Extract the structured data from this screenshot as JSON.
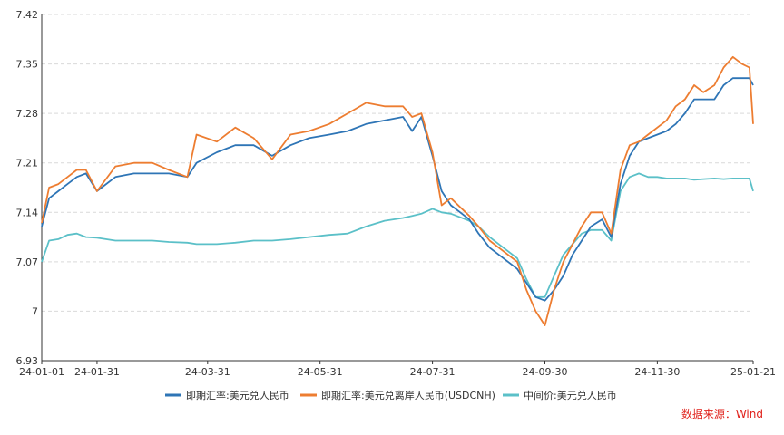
{
  "chart_data": {
    "type": "line",
    "x_ticks": [
      "24-01-01",
      "24-01-31",
      "24-03-31",
      "24-05-31",
      "24-07-31",
      "24-09-30",
      "24-11-30",
      "25-01-21"
    ],
    "y_ticks": [
      "7.42",
      "7.35",
      "7.28",
      "7.21",
      "7.14",
      "7.07",
      "7",
      "6.93"
    ],
    "ylim": [
      6.93,
      7.42
    ],
    "grid": "horizontal dashed",
    "legend_position": "bottom",
    "series": [
      {
        "name": "即期汇率:美元兑人民币",
        "color": "#2e75b6",
        "points": [
          [
            "2024-01-01",
            7.12
          ],
          [
            "2024-01-05",
            7.16
          ],
          [
            "2024-01-10",
            7.17
          ],
          [
            "2024-01-15",
            7.18
          ],
          [
            "2024-01-20",
            7.19
          ],
          [
            "2024-01-25",
            7.195
          ],
          [
            "2024-01-31",
            7.17
          ],
          [
            "2024-02-10",
            7.19
          ],
          [
            "2024-02-20",
            7.195
          ],
          [
            "2024-03-01",
            7.195
          ],
          [
            "2024-03-10",
            7.195
          ],
          [
            "2024-03-20",
            7.19
          ],
          [
            "2024-03-25",
            7.21
          ],
          [
            "2024-04-05",
            7.225
          ],
          [
            "2024-04-15",
            7.235
          ],
          [
            "2024-04-25",
            7.235
          ],
          [
            "2024-05-05",
            7.22
          ],
          [
            "2024-05-15",
            7.235
          ],
          [
            "2024-05-25",
            7.245
          ],
          [
            "2024-06-05",
            7.25
          ],
          [
            "2024-06-15",
            7.255
          ],
          [
            "2024-06-25",
            7.265
          ],
          [
            "2024-07-05",
            7.27
          ],
          [
            "2024-07-15",
            7.275
          ],
          [
            "2024-07-20",
            7.255
          ],
          [
            "2024-07-25",
            7.275
          ],
          [
            "2024-07-31",
            7.22
          ],
          [
            "2024-08-05",
            7.17
          ],
          [
            "2024-08-10",
            7.15
          ],
          [
            "2024-08-20",
            7.13
          ],
          [
            "2024-08-25",
            7.11
          ],
          [
            "2024-08-31",
            7.09
          ],
          [
            "2024-09-05",
            7.08
          ],
          [
            "2024-09-15",
            7.06
          ],
          [
            "2024-09-20",
            7.04
          ],
          [
            "2024-09-25",
            7.02
          ],
          [
            "2024-09-30",
            7.015
          ],
          [
            "2024-10-05",
            7.03
          ],
          [
            "2024-10-10",
            7.05
          ],
          [
            "2024-10-15",
            7.08
          ],
          [
            "2024-10-20",
            7.1
          ],
          [
            "2024-10-25",
            7.12
          ],
          [
            "2024-10-31",
            7.13
          ],
          [
            "2024-11-05",
            7.105
          ],
          [
            "2024-11-10",
            7.18
          ],
          [
            "2024-11-15",
            7.22
          ],
          [
            "2024-11-20",
            7.24
          ],
          [
            "2024-11-25",
            7.245
          ],
          [
            "2024-11-30",
            7.25
          ],
          [
            "2024-12-05",
            7.255
          ],
          [
            "2024-12-10",
            7.265
          ],
          [
            "2024-12-15",
            7.28
          ],
          [
            "2024-12-20",
            7.3
          ],
          [
            "2024-12-25",
            7.3
          ],
          [
            "2024-12-31",
            7.3
          ],
          [
            "2025-01-05",
            7.32
          ],
          [
            "2025-01-10",
            7.33
          ],
          [
            "2025-01-15",
            7.33
          ],
          [
            "2025-01-19",
            7.33
          ],
          [
            "2025-01-21",
            7.32
          ]
        ]
      },
      {
        "name": "即期汇率:美元兑离岸人民币(USDCNH)",
        "color": "#ed7d31",
        "points": [
          [
            "2024-01-01",
            7.125
          ],
          [
            "2024-01-05",
            7.175
          ],
          [
            "2024-01-10",
            7.18
          ],
          [
            "2024-01-15",
            7.19
          ],
          [
            "2024-01-20",
            7.2
          ],
          [
            "2024-01-25",
            7.2
          ],
          [
            "2024-01-31",
            7.17
          ],
          [
            "2024-02-10",
            7.205
          ],
          [
            "2024-02-20",
            7.21
          ],
          [
            "2024-03-01",
            7.21
          ],
          [
            "2024-03-10",
            7.2
          ],
          [
            "2024-03-20",
            7.19
          ],
          [
            "2024-03-25",
            7.25
          ],
          [
            "2024-04-05",
            7.24
          ],
          [
            "2024-04-15",
            7.26
          ],
          [
            "2024-04-25",
            7.245
          ],
          [
            "2024-05-05",
            7.215
          ],
          [
            "2024-05-15",
            7.25
          ],
          [
            "2024-05-25",
            7.255
          ],
          [
            "2024-06-05",
            7.265
          ],
          [
            "2024-06-15",
            7.28
          ],
          [
            "2024-06-25",
            7.295
          ],
          [
            "2024-07-05",
            7.29
          ],
          [
            "2024-07-15",
            7.29
          ],
          [
            "2024-07-20",
            7.275
          ],
          [
            "2024-07-25",
            7.28
          ],
          [
            "2024-07-31",
            7.225
          ],
          [
            "2024-08-05",
            7.15
          ],
          [
            "2024-08-10",
            7.16
          ],
          [
            "2024-08-20",
            7.135
          ],
          [
            "2024-08-25",
            7.12
          ],
          [
            "2024-08-31",
            7.1
          ],
          [
            "2024-09-05",
            7.09
          ],
          [
            "2024-09-15",
            7.07
          ],
          [
            "2024-09-20",
            7.03
          ],
          [
            "2024-09-25",
            7.0
          ],
          [
            "2024-09-30",
            6.98
          ],
          [
            "2024-10-05",
            7.03
          ],
          [
            "2024-10-10",
            7.07
          ],
          [
            "2024-10-15",
            7.095
          ],
          [
            "2024-10-20",
            7.12
          ],
          [
            "2024-10-25",
            7.14
          ],
          [
            "2024-10-31",
            7.14
          ],
          [
            "2024-11-05",
            7.11
          ],
          [
            "2024-11-10",
            7.2
          ],
          [
            "2024-11-15",
            7.235
          ],
          [
            "2024-11-20",
            7.24
          ],
          [
            "2024-11-25",
            7.25
          ],
          [
            "2024-11-30",
            7.26
          ],
          [
            "2024-12-05",
            7.27
          ],
          [
            "2024-12-10",
            7.29
          ],
          [
            "2024-12-15",
            7.3
          ],
          [
            "2024-12-20",
            7.32
          ],
          [
            "2024-12-25",
            7.31
          ],
          [
            "2024-12-31",
            7.32
          ],
          [
            "2025-01-05",
            7.345
          ],
          [
            "2025-01-10",
            7.36
          ],
          [
            "2025-01-15",
            7.35
          ],
          [
            "2025-01-19",
            7.345
          ],
          [
            "2025-01-21",
            7.265
          ]
        ]
      },
      {
        "name": "中间价:美元兑人民币",
        "color": "#5bc0c8",
        "points": [
          [
            "2024-01-01",
            7.07
          ],
          [
            "2024-01-05",
            7.1
          ],
          [
            "2024-01-10",
            7.102
          ],
          [
            "2024-01-15",
            7.108
          ],
          [
            "2024-01-20",
            7.11
          ],
          [
            "2024-01-25",
            7.105
          ],
          [
            "2024-01-31",
            7.104
          ],
          [
            "2024-02-10",
            7.1
          ],
          [
            "2024-02-20",
            7.1
          ],
          [
            "2024-03-01",
            7.1
          ],
          [
            "2024-03-10",
            7.098
          ],
          [
            "2024-03-20",
            7.097
          ],
          [
            "2024-03-25",
            7.095
          ],
          [
            "2024-04-05",
            7.095
          ],
          [
            "2024-04-15",
            7.097
          ],
          [
            "2024-04-25",
            7.1
          ],
          [
            "2024-05-05",
            7.1
          ],
          [
            "2024-05-15",
            7.102
          ],
          [
            "2024-05-25",
            7.105
          ],
          [
            "2024-06-05",
            7.108
          ],
          [
            "2024-06-15",
            7.11
          ],
          [
            "2024-06-25",
            7.12
          ],
          [
            "2024-07-05",
            7.128
          ],
          [
            "2024-07-15",
            7.132
          ],
          [
            "2024-07-20",
            7.135
          ],
          [
            "2024-07-25",
            7.138
          ],
          [
            "2024-07-31",
            7.145
          ],
          [
            "2024-08-05",
            7.14
          ],
          [
            "2024-08-10",
            7.138
          ],
          [
            "2024-08-20",
            7.128
          ],
          [
            "2024-08-25",
            7.12
          ],
          [
            "2024-08-31",
            7.105
          ],
          [
            "2024-09-05",
            7.095
          ],
          [
            "2024-09-15",
            7.075
          ],
          [
            "2024-09-20",
            7.045
          ],
          [
            "2024-09-25",
            7.02
          ],
          [
            "2024-09-30",
            7.02
          ],
          [
            "2024-10-05",
            7.05
          ],
          [
            "2024-10-10",
            7.08
          ],
          [
            "2024-10-15",
            7.095
          ],
          [
            "2024-10-20",
            7.11
          ],
          [
            "2024-10-25",
            7.115
          ],
          [
            "2024-10-31",
            7.115
          ],
          [
            "2024-11-05",
            7.1
          ],
          [
            "2024-11-10",
            7.17
          ],
          [
            "2024-11-15",
            7.19
          ],
          [
            "2024-11-20",
            7.195
          ],
          [
            "2024-11-25",
            7.19
          ],
          [
            "2024-11-30",
            7.19
          ],
          [
            "2024-12-05",
            7.188
          ],
          [
            "2024-12-10",
            7.188
          ],
          [
            "2024-12-15",
            7.188
          ],
          [
            "2024-12-20",
            7.186
          ],
          [
            "2024-12-25",
            7.187
          ],
          [
            "2024-12-31",
            7.188
          ],
          [
            "2025-01-05",
            7.187
          ],
          [
            "2025-01-10",
            7.188
          ],
          [
            "2025-01-15",
            7.188
          ],
          [
            "2025-01-19",
            7.188
          ],
          [
            "2025-01-21",
            7.17
          ]
        ]
      }
    ],
    "source": {
      "text": "数据来源：Wind",
      "color": "#e0201a"
    }
  }
}
